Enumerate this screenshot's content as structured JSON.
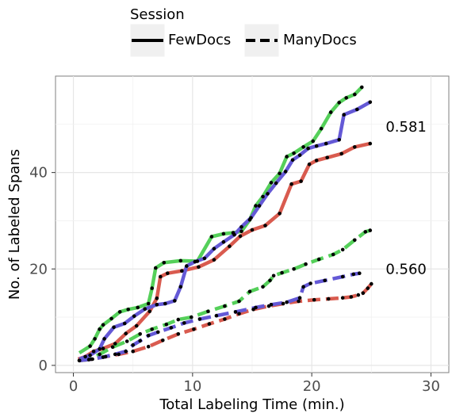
{
  "chart_data": {
    "type": "line",
    "title": "",
    "xlabel": "Total Labeling Time (min.)",
    "ylabel": "No. of Labeled Spans",
    "xlim": [
      -1.5,
      31.5
    ],
    "ylim": [
      -1.5,
      60
    ],
    "xticks": [
      0,
      10,
      20,
      30
    ],
    "yticks": [
      0,
      20,
      40
    ],
    "grid": true,
    "legend": {
      "title": "Session",
      "placement": "top",
      "entries": [
        {
          "label": "FewDocs",
          "linestyle": "solid"
        },
        {
          "label": "ManyDocs",
          "linestyle": "dashed"
        }
      ]
    },
    "annotations": [
      {
        "text": "0.581",
        "x": 26.2,
        "y": 49.5
      },
      {
        "text": "0.560",
        "x": 26.2,
        "y": 20.0
      }
    ],
    "series_colors": {
      "green": "#55d05a",
      "blue": "#6459d6",
      "red": "#d95b4f",
      "marker": "#000000"
    },
    "series": [
      {
        "session": "FewDocs",
        "color": "green",
        "x": [
          0.5,
          1.4,
          1.8,
          2.2,
          2.5,
          3.2,
          3.9,
          4.6,
          5.4,
          6.3,
          6.6,
          6.9,
          7.6,
          9.0,
          10.4,
          11.6,
          12.6,
          13.4,
          14.1,
          14.8,
          15.3,
          15.9,
          16.6,
          17.3,
          17.9,
          18.5,
          19.3,
          20.1,
          20.8,
          21.6,
          22.3,
          22.9,
          23.6,
          24.2
        ],
        "y": [
          2.6,
          4.0,
          5.5,
          7.5,
          8.4,
          9.7,
          11.1,
          11.6,
          12.0,
          12.8,
          16.0,
          20.2,
          21.3,
          21.7,
          21.6,
          26.7,
          27.3,
          27.5,
          27.8,
          30.2,
          33.1,
          35.0,
          37.9,
          39.8,
          43.3,
          44.0,
          45.3,
          46.5,
          49.1,
          52.5,
          54.5,
          55.5,
          56.2,
          57.7
        ]
      },
      {
        "session": "FewDocs",
        "color": "red",
        "x": [
          0.4,
          1.0,
          1.7,
          2.5,
          3.5,
          4.4,
          5.3,
          6.4,
          7.0,
          7.3,
          7.9,
          9.1,
          10.5,
          11.8,
          13.1,
          14.0,
          15.0,
          16.1,
          17.3,
          18.3,
          19.1,
          19.8,
          20.4,
          21.3,
          22.5,
          23.6,
          24.9
        ],
        "y": [
          1.3,
          1.8,
          2.9,
          3.5,
          4.5,
          6.6,
          8.2,
          11.2,
          13.9,
          18.4,
          19.1,
          19.6,
          20.4,
          21.9,
          24.7,
          26.8,
          28.1,
          29.0,
          31.5,
          37.6,
          38.2,
          41.7,
          42.5,
          43.1,
          43.9,
          45.3,
          46.0
        ]
      },
      {
        "session": "FewDocs",
        "color": "blue",
        "x": [
          0.5,
          1.4,
          2.2,
          2.6,
          3.4,
          4.3,
          5.1,
          6.0,
          7.0,
          7.7,
          8.5,
          9.0,
          9.5,
          10.2,
          11.0,
          11.8,
          12.6,
          13.5,
          14.1,
          14.9,
          15.6,
          16.3,
          17.0,
          17.8,
          18.4,
          19.0,
          19.7,
          20.4,
          21.2,
          22.3,
          22.7,
          23.8,
          24.9
        ],
        "y": [
          1.3,
          2.1,
          3.4,
          5.5,
          7.9,
          8.7,
          10.2,
          11.7,
          12.6,
          12.8,
          13.4,
          16.3,
          20.6,
          21.5,
          22.2,
          24.2,
          25.6,
          27.1,
          28.7,
          30.6,
          33.1,
          35.6,
          37.8,
          40.2,
          42.6,
          43.6,
          45.0,
          45.5,
          46.0,
          46.8,
          52.0,
          53.1,
          54.6
        ]
      },
      {
        "session": "ManyDocs",
        "color": "green",
        "x": [
          0.5,
          1.3,
          2.2,
          3.3,
          4.5,
          5.6,
          6.6,
          7.8,
          8.8,
          9.9,
          11.3,
          12.7,
          13.9,
          14.8,
          15.9,
          16.5,
          16.8,
          17.5,
          18.5,
          19.5,
          20.6,
          21.8,
          22.6,
          23.6,
          24.5,
          24.9
        ],
        "y": [
          1.0,
          1.2,
          2.3,
          3.8,
          5.0,
          6.5,
          7.5,
          8.5,
          9.5,
          10.0,
          11.2,
          12.3,
          13.3,
          15.3,
          16.3,
          17.6,
          18.6,
          19.2,
          20.0,
          21.0,
          22.0,
          23.0,
          24.0,
          26.0,
          27.7,
          28.0
        ]
      },
      {
        "session": "ManyDocs",
        "color": "red",
        "x": [
          0.5,
          1.6,
          2.7,
          3.8,
          5.0,
          6.3,
          7.5,
          8.8,
          10.1,
          11.4,
          12.7,
          13.9,
          15.1,
          16.4,
          17.6,
          18.9,
          20.2,
          21.4,
          22.6,
          23.3,
          23.9,
          24.3,
          24.7,
          25.0
        ],
        "y": [
          1.0,
          1.3,
          1.8,
          2.3,
          2.9,
          3.9,
          5.2,
          6.5,
          7.5,
          8.6,
          9.6,
          10.7,
          11.6,
          12.3,
          12.8,
          13.3,
          13.6,
          13.8,
          14.0,
          14.2,
          14.6,
          15.0,
          16.0,
          16.9
        ]
      },
      {
        "session": "ManyDocs",
        "color": "blue",
        "x": [
          0.5,
          1.5,
          2.5,
          3.5,
          4.4,
          5.0,
          5.6,
          6.3,
          7.1,
          8.2,
          9.3,
          10.6,
          12.0,
          13.6,
          15.3,
          16.6,
          17.9,
          19.0,
          19.3,
          19.9,
          21.1,
          22.6,
          23.5,
          24.0
        ],
        "y": [
          1.0,
          1.3,
          1.7,
          2.3,
          2.9,
          4.2,
          5.1,
          6.2,
          6.9,
          7.8,
          8.8,
          9.6,
          10.3,
          11.1,
          12.0,
          12.6,
          13.1,
          14.0,
          16.3,
          17.0,
          17.6,
          18.4,
          18.9,
          19.1
        ]
      }
    ]
  }
}
